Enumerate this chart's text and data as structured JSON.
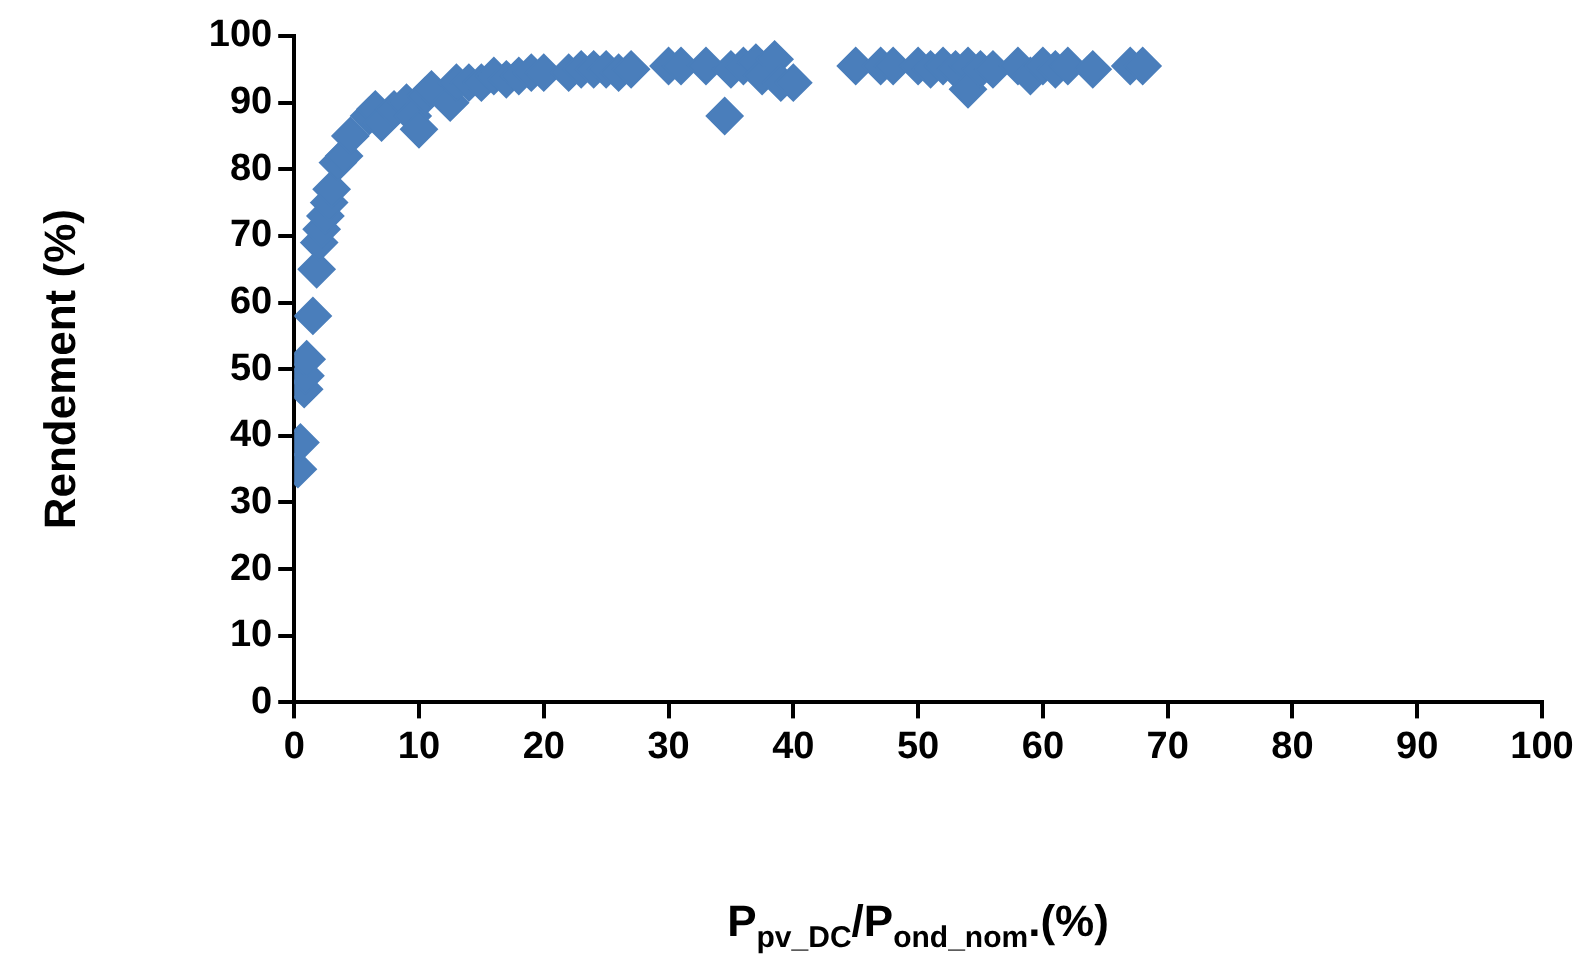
{
  "chart_data": {
    "type": "scatter",
    "xlabel": "P$_{pv_DC}$/P$_{ond_nom}$.(%)",
    "ylabel": "Rendement (%)",
    "xlim": [
      0,
      100
    ],
    "xticks": [
      0,
      10,
      20,
      30,
      40,
      50,
      60,
      70,
      80,
      90,
      100
    ],
    "ylim": [
      0,
      100
    ],
    "yticks": [
      0,
      10,
      20,
      30,
      40,
      50,
      60,
      70,
      80,
      90,
      100
    ],
    "grid": false,
    "legend": false,
    "marker": "diamond",
    "series": [
      {
        "color": "#4a7ebb",
        "x": [
          0.3,
          0.5,
          0.8,
          0.9,
          1,
          1.5,
          1.8,
          2,
          2.2,
          2.5,
          2.8,
          3,
          3.5,
          4,
          4.5,
          6,
          6.5,
          7,
          8,
          9,
          9.5,
          10,
          10.5,
          11,
          12.5,
          13,
          14,
          15,
          16,
          17,
          18,
          19,
          20,
          22,
          23,
          24,
          25,
          26,
          27,
          30,
          31,
          33,
          34.5,
          35,
          36,
          37,
          37.5,
          38.5,
          39,
          40,
          45,
          47,
          48,
          50,
          51,
          52,
          53,
          54,
          54,
          55,
          56,
          58,
          59,
          60,
          61,
          62,
          64,
          67,
          68
        ],
        "values": [
          35,
          39,
          47,
          49,
          51.5,
          58,
          65,
          69,
          71,
          73,
          75,
          77,
          81,
          82,
          85,
          88,
          89,
          87,
          89,
          90,
          88,
          86,
          91,
          92,
          90,
          93,
          93,
          93,
          94,
          93.5,
          94,
          94.5,
          94.5,
          94.5,
          95,
          95,
          95,
          94.5,
          95,
          95.5,
          95.5,
          95.5,
          88,
          95,
          95.5,
          96,
          94,
          96.5,
          93,
          93,
          95.5,
          95.5,
          95.5,
          95.5,
          95,
          95.5,
          95,
          95.5,
          92,
          95,
          95,
          95.5,
          94,
          95.5,
          95,
          95.5,
          95,
          95.5,
          95.5
        ]
      }
    ]
  }
}
